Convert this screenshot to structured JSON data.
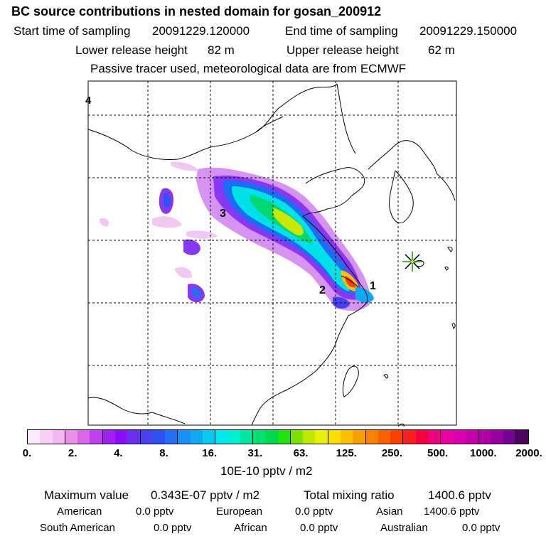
{
  "header": {
    "title": "BC  source contributions in nested domain for gosan_200912",
    "start_label": "Start time of sampling",
    "start_time": "20091229.120000",
    "end_label": "End time of sampling",
    "end_time": "20091229.150000",
    "lower_label": "Lower release height",
    "lower_value": "82 m",
    "upper_label": "Upper release height",
    "upper_value": "62 m",
    "note": "Passive tracer used, meteorological data are from ECMWF"
  },
  "map": {
    "corner_label": "4",
    "source_labels": [
      "3",
      "2",
      "1"
    ],
    "receptor_marker": "gosan-star"
  },
  "legend": {
    "ticks": [
      "0.",
      "2.",
      "4.",
      "8.",
      "16.",
      "31.",
      "63.",
      "125.",
      "250.",
      "500.",
      "1000.",
      "2000."
    ],
    "colors": [
      "#fde9fb",
      "#f8d0f6",
      "#f2b6f1",
      "#e98ee9",
      "#d866e5",
      "#c040f0",
      "#a020f4",
      "#8a10f6",
      "#6a30f0",
      "#4a40f0",
      "#3050f0",
      "#2070f8",
      "#1890f8",
      "#10a8f0",
      "#08c8f0",
      "#00e8f0",
      "#00f0d0",
      "#00e8a0",
      "#00e070",
      "#00d850",
      "#20e010",
      "#80e000",
      "#c0e800",
      "#e8f000",
      "#f8e000",
      "#f8c000",
      "#f8a000",
      "#f88000",
      "#f86000",
      "#f84000",
      "#f82020",
      "#f80040",
      "#f00080",
      "#e800a0",
      "#d800b0",
      "#c800b0",
      "#b000a8",
      "#9800a0",
      "#780090",
      "#500060"
    ],
    "unit": "10E-10 pptv / m2"
  },
  "stats": {
    "max_label": "Maximum value",
    "max_value": "0.343E-07 pptv / m2",
    "total_label": "Total mixing ratio",
    "total_value": "1400.6 pptv",
    "american_label": "American",
    "american_value": "0.0 pptv",
    "european_label": "European",
    "european_value": "0.0 pptv",
    "asian_label": "Asian",
    "asian_value": "1400.6 pptv",
    "south_american_label": "South American",
    "south_american_value": "0.0 pptv",
    "african_label": "African",
    "african_value": "0.0 pptv",
    "australian_label": "Australian",
    "australian_value": "0.0 pptv"
  }
}
